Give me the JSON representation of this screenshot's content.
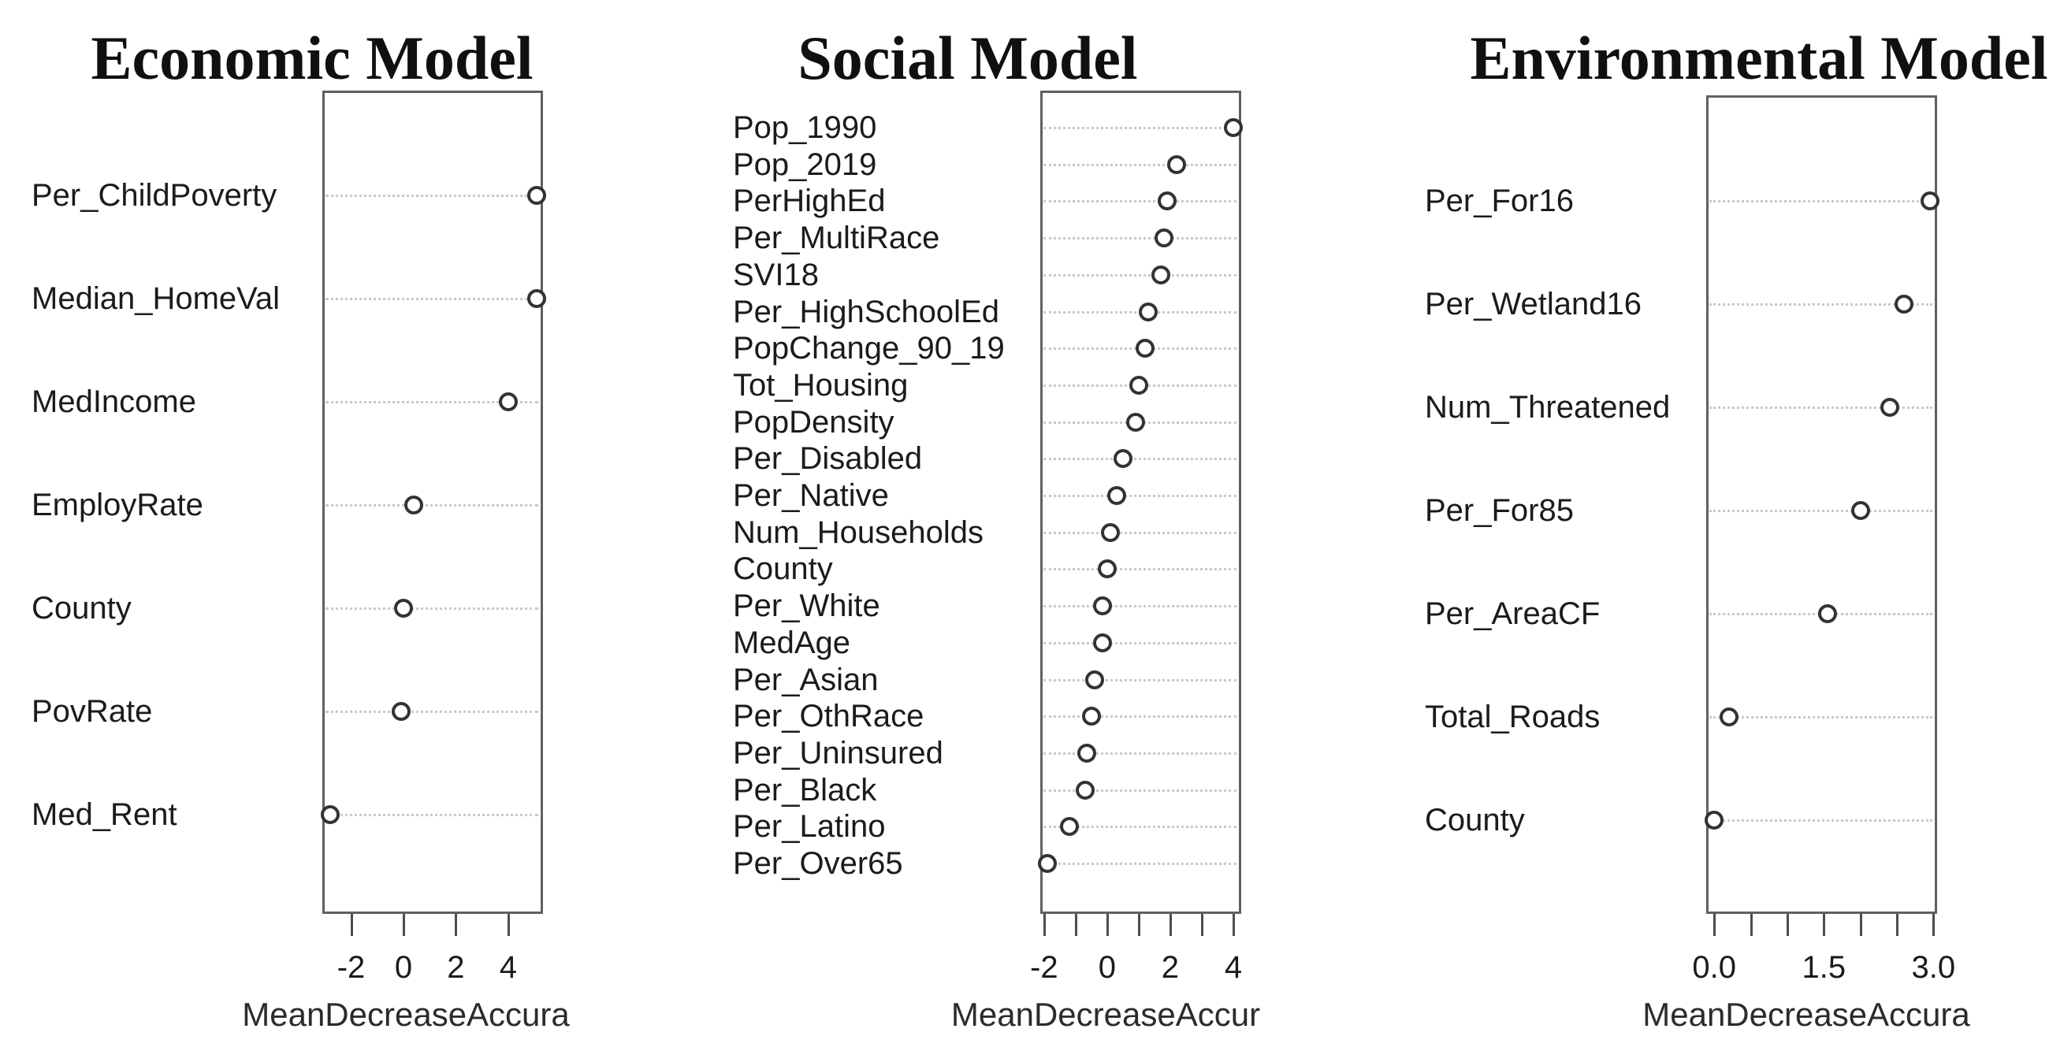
{
  "figure": {
    "background": "#ffffff",
    "text_color": "#1b1b1b",
    "box_border_color": "#606060",
    "grid_dot_color": "#c9c9c9",
    "point_fill": "#ffffff",
    "point_stroke": "#333333"
  },
  "chart_data": [
    {
      "type": "scatter",
      "variant": "dot-plot",
      "title": "Economic Model",
      "xlabel": "MeanDecreaseAccura",
      "xlim": [
        -3.1,
        5.33
      ],
      "grid": "dotted-horizontal-rows",
      "legend": "none",
      "categories": [
        "Per_ChildPoverty",
        "Median_HomeVal",
        "MedIncome",
        "EmployRate",
        "County",
        "PovRate",
        "Med_Rent"
      ],
      "values": [
        5.1,
        5.1,
        4.0,
        0.4,
        0.0,
        -0.1,
        -2.8
      ],
      "x_ticks": [
        {
          "v": -2,
          "label": "-2"
        },
        {
          "v": 0,
          "label": "0"
        },
        {
          "v": 2,
          "label": "2"
        },
        {
          "v": 4,
          "label": "4"
        }
      ]
    },
    {
      "type": "scatter",
      "variant": "dot-plot",
      "title": "Social Model",
      "xlabel": "MeanDecreaseAccur",
      "xlim": [
        -2.12,
        4.25
      ],
      "grid": "dotted-horizontal-rows",
      "legend": "none",
      "categories": [
        "Pop_1990",
        "Pop_2019",
        "PerHighEd",
        "Per_MultiRace",
        "SVI18",
        "Per_HighSchoolEd",
        "PopChange_90_19",
        "Tot_Housing",
        "PopDensity",
        "Per_Disabled",
        "Per_Native",
        "Num_Households",
        "County",
        "Per_White",
        "MedAge",
        "Per_Asian",
        "Per_OthRace",
        "Per_Uninsured",
        "Per_Black",
        "Per_Latino",
        "Per_Over65"
      ],
      "values": [
        4.0,
        2.2,
        1.9,
        1.8,
        1.7,
        1.3,
        1.2,
        1.0,
        0.9,
        0.5,
        0.3,
        0.1,
        0.0,
        -0.15,
        -0.15,
        -0.4,
        -0.5,
        -0.65,
        -0.7,
        -1.2,
        -1.9
      ],
      "x_ticks": [
        {
          "v": -2,
          "label": "-2"
        },
        {
          "v": -1,
          "label": ""
        },
        {
          "v": 0,
          "label": "0"
        },
        {
          "v": 1,
          "label": ""
        },
        {
          "v": 2,
          "label": "2"
        },
        {
          "v": 3,
          "label": ""
        },
        {
          "v": 4,
          "label": "4"
        }
      ]
    },
    {
      "type": "scatter",
      "variant": "dot-plot",
      "title": "Environmental Model",
      "xlabel": "MeanDecreaseAccura",
      "xlim": [
        -0.11,
        3.05
      ],
      "grid": "dotted-horizontal-rows",
      "legend": "none",
      "categories": [
        "Per_For16",
        "Per_Wetland16",
        "Num_Threatened",
        "Per_For85",
        "Per_AreaCF",
        "Total_Roads",
        "County"
      ],
      "values": [
        2.95,
        2.6,
        2.4,
        2.0,
        1.55,
        0.2,
        0.0
      ],
      "x_ticks": [
        {
          "v": 0,
          "label": "0.0"
        },
        {
          "v": 0.5,
          "label": ""
        },
        {
          "v": 1,
          "label": ""
        },
        {
          "v": 1.5,
          "label": "1.5"
        },
        {
          "v": 2,
          "label": ""
        },
        {
          "v": 2.5,
          "label": ""
        },
        {
          "v": 3,
          "label": "3.0"
        }
      ]
    }
  ]
}
